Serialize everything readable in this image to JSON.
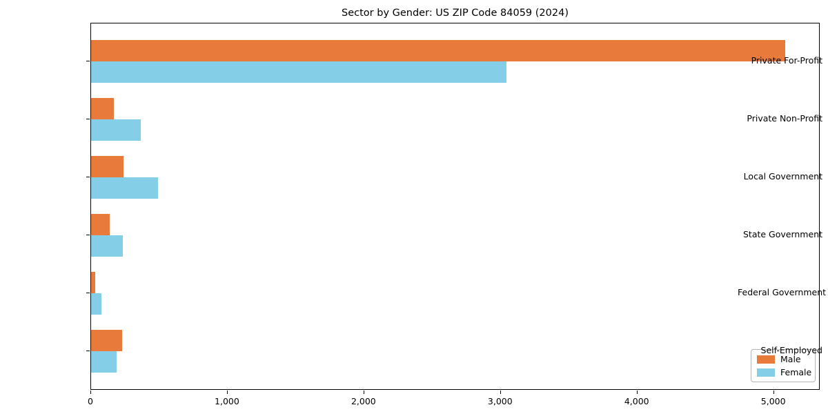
{
  "chart_data": {
    "type": "bar",
    "orientation": "horizontal",
    "title": "Sector by Gender: US ZIP Code 84059 (2024)",
    "categories": [
      "Private For-Profit",
      "Private Non-Profit",
      "Local Government",
      "State Government",
      "Federal Government",
      "Self-Employed"
    ],
    "series": [
      {
        "name": "Male",
        "color": "#e87b3c",
        "values": [
          5080,
          168,
          239,
          135,
          29,
          228
        ]
      },
      {
        "name": "Female",
        "color": "#85cee8",
        "values": [
          3043,
          366,
          489,
          231,
          74,
          186
        ]
      }
    ],
    "xlabel": "",
    "ylabel": "",
    "xlim": [
      0,
      5340
    ],
    "xticks": {
      "values": [
        0,
        1000,
        2000,
        3000,
        4000,
        5000
      ],
      "labels": [
        "0",
        "1,000",
        "2,000",
        "3,000",
        "4,000",
        "5,000"
      ]
    },
    "grid": false,
    "legend": {
      "position": "lower right"
    }
  }
}
